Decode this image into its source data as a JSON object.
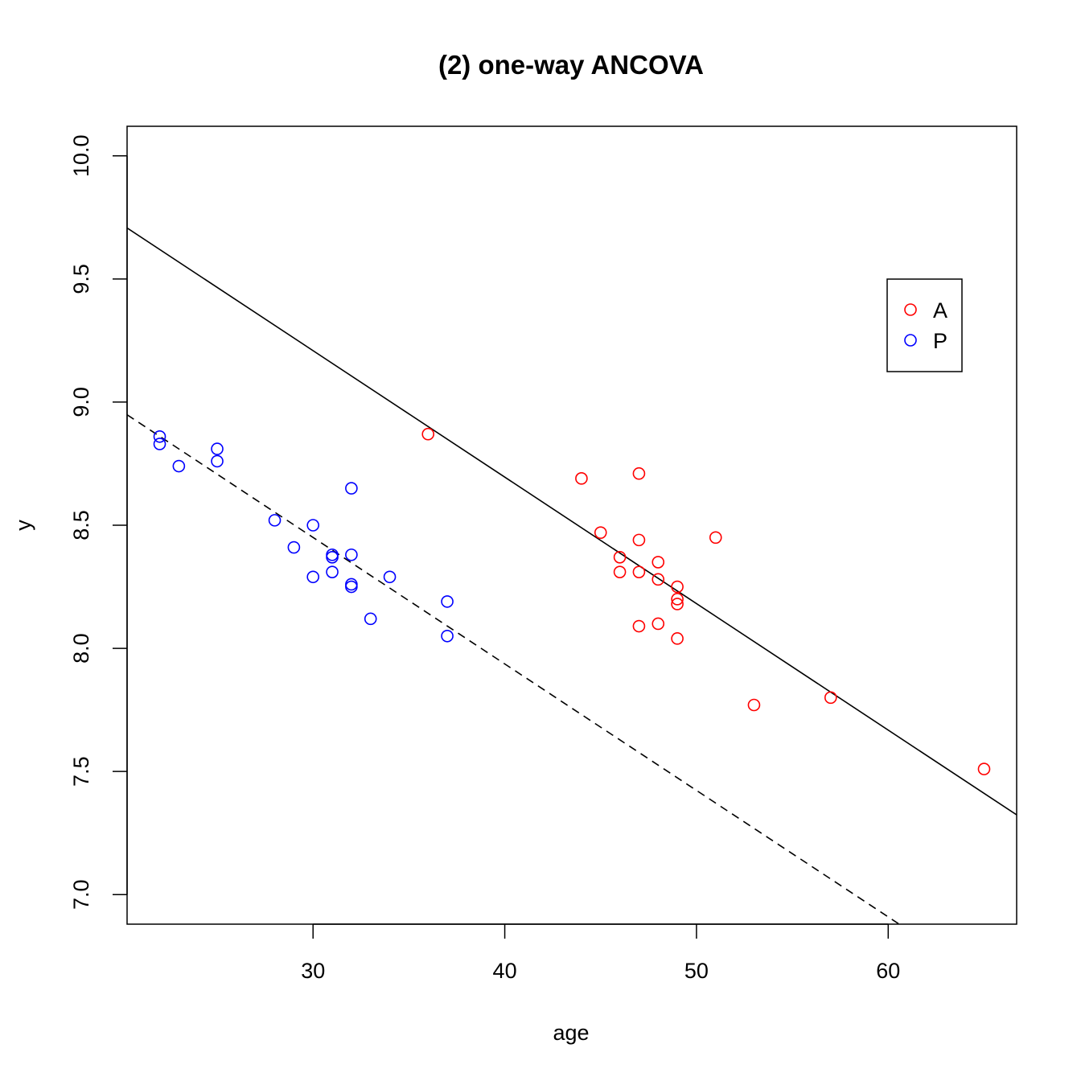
{
  "chart_data": {
    "type": "scatter",
    "title": "(2) one-way ANCOVA",
    "xlabel": "age",
    "ylabel": "y",
    "xlim": [
      20.3,
      66.7
    ],
    "ylim": [
      6.88,
      10.12
    ],
    "x_ticks": [
      30,
      40,
      50,
      60
    ],
    "x_tick_labels": [
      "30",
      "40",
      "50",
      "60"
    ],
    "y_ticks": [
      7.0,
      7.5,
      8.0,
      8.5,
      9.0,
      9.5,
      10.0
    ],
    "y_tick_labels": [
      "7.0",
      "7.5",
      "8.0",
      "8.5",
      "9.0",
      "9.5",
      "10.0"
    ],
    "grid": false,
    "legend_position": "top-right",
    "series": [
      {
        "name": "A",
        "color": "#ff0000",
        "marker": "open-circle",
        "points": [
          [
            36,
            8.87
          ],
          [
            44,
            8.69
          ],
          [
            45,
            8.47
          ],
          [
            46,
            8.37
          ],
          [
            46,
            8.31
          ],
          [
            47,
            8.71
          ],
          [
            47,
            8.44
          ],
          [
            47,
            8.31
          ],
          [
            47,
            8.09
          ],
          [
            48,
            8.35
          ],
          [
            48,
            8.28
          ],
          [
            48,
            8.1
          ],
          [
            49,
            8.25
          ],
          [
            49,
            8.2
          ],
          [
            49,
            8.18
          ],
          [
            49,
            8.04
          ],
          [
            51,
            8.45
          ],
          [
            53,
            7.77
          ],
          [
            57,
            7.8
          ],
          [
            65,
            7.51
          ]
        ]
      },
      {
        "name": "P",
        "color": "#0000ff",
        "marker": "open-circle",
        "points": [
          [
            22,
            8.86
          ],
          [
            22,
            8.83
          ],
          [
            23,
            8.74
          ],
          [
            25,
            8.81
          ],
          [
            25,
            8.76
          ],
          [
            28,
            8.52
          ],
          [
            29,
            8.41
          ],
          [
            30,
            8.5
          ],
          [
            30,
            8.29
          ],
          [
            31,
            8.38
          ],
          [
            31,
            8.37
          ],
          [
            31,
            8.31
          ],
          [
            32,
            8.65
          ],
          [
            32,
            8.38
          ],
          [
            32,
            8.26
          ],
          [
            32,
            8.25
          ],
          [
            33,
            8.12
          ],
          [
            34,
            8.29
          ],
          [
            37,
            8.19
          ],
          [
            37,
            8.05
          ]
        ]
      }
    ],
    "fit_lines": [
      {
        "group": "A",
        "style": "solid",
        "color": "#000000",
        "intercept": 10.7497,
        "slope": -0.05136
      },
      {
        "group": "P",
        "style": "dashed",
        "color": "#000000",
        "intercept": 9.9911,
        "slope": -0.05136
      }
    ]
  }
}
